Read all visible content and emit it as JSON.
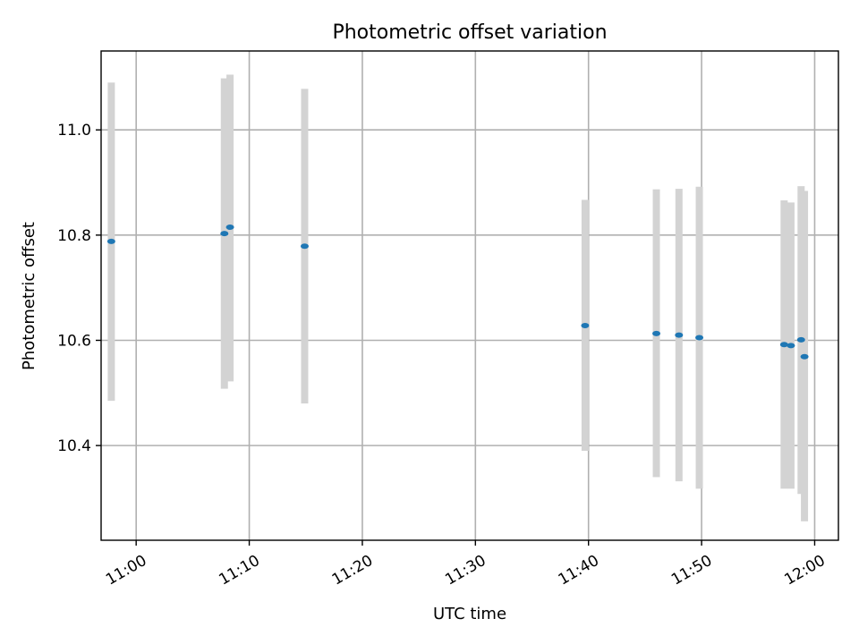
{
  "chart_data": {
    "type": "scatter",
    "title": "Photometric offset variation",
    "xlabel": "UTC time",
    "ylabel": "Photometric offset",
    "x_axis": "time",
    "xlim": [
      "10:56:54",
      "12:02:06"
    ],
    "ylim": [
      10.22,
      11.15
    ],
    "x_ticks": [
      "11:00",
      "11:10",
      "11:20",
      "11:30",
      "11:40",
      "11:50",
      "12:00"
    ],
    "y_ticks": [
      10.4,
      10.6,
      10.8,
      11.0
    ],
    "y_tick_labels": [
      "10.4",
      "10.6",
      "10.8",
      "11.0"
    ],
    "grid": true,
    "legend": "none",
    "error_bar_color": "#d3d3d3",
    "point_color": "#1f77b4",
    "points": [
      {
        "time": "10:57:48",
        "value": 10.788,
        "err_low": 10.485,
        "err_high": 11.09
      },
      {
        "time": "11:07:48",
        "value": 10.803,
        "err_low": 10.508,
        "err_high": 11.098
      },
      {
        "time": "11:08:18",
        "value": 10.815,
        "err_low": 10.522,
        "err_high": 11.105
      },
      {
        "time": "11:14:54",
        "value": 10.779,
        "err_low": 10.48,
        "err_high": 11.078
      },
      {
        "time": "11:39:42",
        "value": 10.628,
        "err_low": 10.39,
        "err_high": 10.867
      },
      {
        "time": "11:46:00",
        "value": 10.613,
        "err_low": 10.34,
        "err_high": 10.887
      },
      {
        "time": "11:48:00",
        "value": 10.61,
        "err_low": 10.332,
        "err_high": 10.888
      },
      {
        "time": "11:49:48",
        "value": 10.605,
        "err_low": 10.318,
        "err_high": 10.892
      },
      {
        "time": "11:57:18",
        "value": 10.592,
        "err_low": 10.318,
        "err_high": 10.866
      },
      {
        "time": "11:57:54",
        "value": 10.59,
        "err_low": 10.318,
        "err_high": 10.862
      },
      {
        "time": "11:58:48",
        "value": 10.601,
        "err_low": 10.308,
        "err_high": 10.893
      },
      {
        "time": "11:59:06",
        "value": 10.569,
        "err_low": 10.256,
        "err_high": 10.884
      }
    ]
  }
}
